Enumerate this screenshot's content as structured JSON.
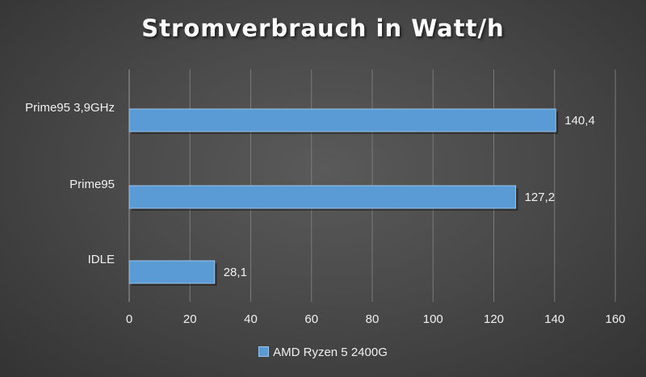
{
  "chart_data": {
    "type": "bar",
    "orientation": "horizontal",
    "title": "Stromverbrauch in Watt/h",
    "categories": [
      "Prime95 3,9GHz",
      "Prime95",
      "IDLE"
    ],
    "series": [
      {
        "name": "AMD Ryzen 5 2400G",
        "values": [
          140.4,
          127.2,
          28.1
        ],
        "labels": [
          "140,4",
          "127,2",
          "28,1"
        ],
        "color": "#5b9bd5"
      }
    ],
    "xlim": [
      0,
      160
    ],
    "xticks": [
      0,
      20,
      40,
      60,
      80,
      100,
      120,
      140,
      160
    ],
    "grid": true,
    "legend": "bottom"
  }
}
